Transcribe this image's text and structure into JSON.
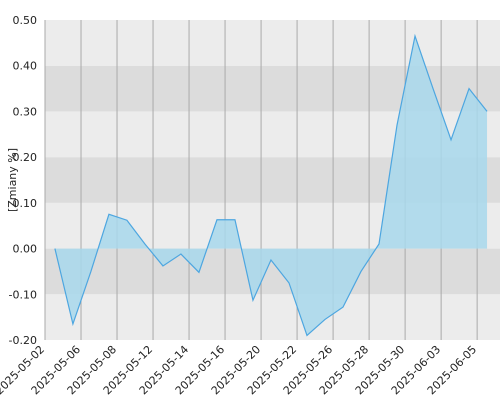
{
  "chart_data": {
    "type": "area",
    "y_label": "[Zmiany %]",
    "x": [
      0.55,
      1.55,
      2.55,
      3.55,
      4.55,
      5.55,
      6.55,
      7.55,
      8.55,
      9.55,
      10.55,
      11.55,
      12.55,
      13.55,
      14.55,
      15.55,
      16.55,
      17.55,
      18.55,
      19.55,
      20.55,
      21.55,
      22.55,
      23.55,
      24.55
    ],
    "values": [
      0.0,
      -0.165,
      -0.05,
      0.075,
      0.062,
      0.01,
      -0.038,
      -0.012,
      -0.052,
      0.063,
      0.063,
      -0.113,
      -0.025,
      -0.075,
      -0.19,
      -0.155,
      -0.128,
      -0.05,
      0.01,
      0.27,
      0.465,
      0.35,
      0.238,
      0.35,
      0.3
    ],
    "color": "#4da6e0",
    "fill": "#a8d8ec",
    "xlim": [
      0,
      25.27
    ],
    "xticks": [
      {
        "value": 0,
        "label": "2025-05-02"
      },
      {
        "value": 2,
        "label": "2025-05-06"
      },
      {
        "value": 4,
        "label": "2025-05-08"
      },
      {
        "value": 6,
        "label": "2025-05-12"
      },
      {
        "value": 8,
        "label": "2025-05-14"
      },
      {
        "value": 10,
        "label": "2025-05-16"
      },
      {
        "value": 12,
        "label": "2025-05-20"
      },
      {
        "value": 14,
        "label": "2025-05-22"
      },
      {
        "value": 16,
        "label": "2025-05-26"
      },
      {
        "value": 18,
        "label": "2025-05-28"
      },
      {
        "value": 20,
        "label": "2025-05-30"
      },
      {
        "value": 22,
        "label": "2025-06-03"
      },
      {
        "value": 24,
        "label": "2025-06-05"
      }
    ],
    "ylim": [
      -0.2,
      0.5
    ],
    "yticks": [
      {
        "value": -0.2,
        "label": "-0.20"
      },
      {
        "value": -0.1,
        "label": "-0.10"
      },
      {
        "value": 0,
        "label": "0.00"
      },
      {
        "value": 0.1,
        "label": "0.10"
      },
      {
        "value": 0.2,
        "label": "0.20"
      },
      {
        "value": 0.3,
        "label": "0.30"
      },
      {
        "value": 0.4,
        "label": "0.40"
      },
      {
        "value": 0.5,
        "label": "0.50"
      }
    ],
    "band_colors": [
      "#ececec",
      "#dcdcdc"
    ],
    "grid": true
  }
}
